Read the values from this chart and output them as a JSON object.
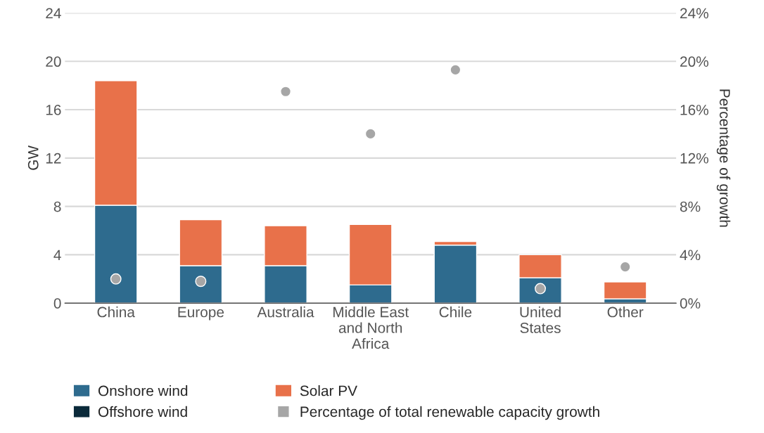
{
  "chart_data": {
    "type": "bar",
    "stacked": true,
    "ylabel": "GW",
    "y2label": "Percentage of growth",
    "categories": [
      "China",
      "Europe",
      "Australia",
      "Middle East\nand North\nAfrica",
      "Chile",
      "United\nStates",
      "Other"
    ],
    "series": [
      {
        "name": "Onshore wind",
        "color": "#2e6b8e",
        "values": [
          8.1,
          3.1,
          3.1,
          1.5,
          4.8,
          2.1,
          0.35
        ]
      },
      {
        "name": "Offshore wind",
        "color": "#0b2a3a",
        "values": [
          0,
          0,
          0,
          0,
          0,
          0,
          0
        ]
      },
      {
        "name": "Solar PV",
        "color": "#e8714a",
        "values": [
          10.3,
          3.8,
          3.3,
          5.0,
          0.3,
          1.9,
          1.4
        ]
      },
      {
        "name": "Percentage of total renewable capacity growth",
        "type": "scatter",
        "axis": "y2",
        "color": "#a6a6a6",
        "x": [
          "China",
          "Europe",
          "Australia",
          "Middle East\nand North\nAfrica",
          "Chile",
          "United\nStates",
          "Other"
        ],
        "values": [
          2.0,
          1.8,
          17.5,
          14.0,
          19.3,
          1.2,
          3.0
        ]
      }
    ],
    "ylim": [
      0,
      24
    ],
    "yticks": [
      0,
      4,
      8,
      12,
      16,
      20,
      24
    ],
    "y2lim": [
      0,
      24
    ],
    "y2ticks": [
      {
        "value": 0,
        "label": "0%"
      },
      {
        "value": 4,
        "label": "4%"
      },
      {
        "value": 8,
        "label": "8%"
      },
      {
        "value": 12,
        "label": "12%"
      },
      {
        "value": 16,
        "label": "16%"
      },
      {
        "value": 20,
        "label": "20%"
      },
      {
        "value": 24,
        "label": "24%"
      }
    ],
    "grid": "y",
    "legend": "bottom",
    "marker": "circle"
  }
}
